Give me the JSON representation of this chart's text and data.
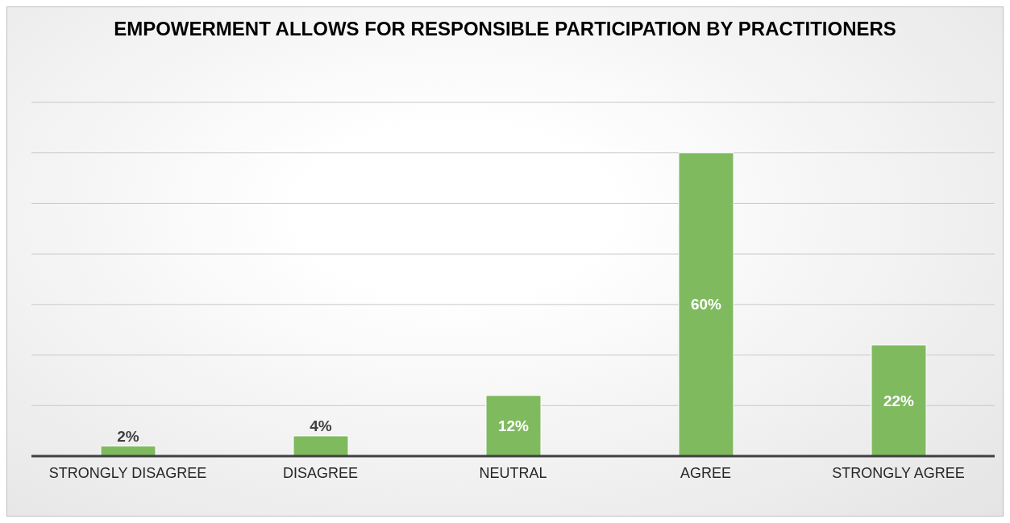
{
  "chart_data": {
    "type": "bar",
    "title": "EMPOWERMENT ALLOWS FOR RESPONSIBLE PARTICIPATION BY PRACTITIONERS",
    "categories": [
      "STRONGLY DISAGREE",
      "DISAGREE",
      "NEUTRAL",
      "AGREE",
      "STRONGLY AGREE"
    ],
    "values": [
      2,
      4,
      12,
      60,
      22
    ],
    "value_labels": [
      "2%",
      "4%",
      "12%",
      "60%",
      "22%"
    ],
    "color": "#7fba5f",
    "ylim": [
      0,
      70
    ],
    "yticks": [
      {
        "value": 0,
        "label": null
      },
      {
        "value": 10,
        "label": null
      },
      {
        "value": 20,
        "label": null
      },
      {
        "value": 30,
        "label": null
      },
      {
        "value": 40,
        "label": null
      },
      {
        "value": 50,
        "label": null
      },
      {
        "value": 60,
        "label": null
      },
      {
        "value": 70,
        "label": null
      }
    ],
    "grid": "y",
    "tick_labels": "x"
  }
}
